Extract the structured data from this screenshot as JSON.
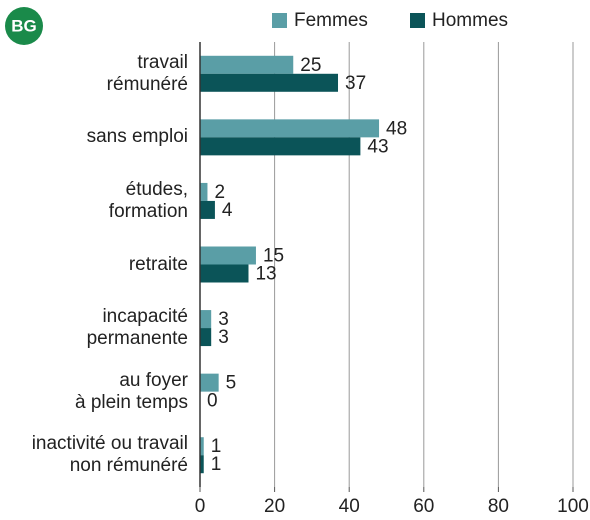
{
  "chart_data": {
    "type": "bar",
    "orientation": "horizontal",
    "badge": "BG",
    "categories": [
      "travail\nrémunéré",
      "sans emploi",
      "études,\nformation",
      "retraite",
      "incapacité\npermanente",
      "au foyer\nà plein temps",
      "inactivité ou travail\nnon rémunéré"
    ],
    "series": [
      {
        "name": "Femmes",
        "color": "#5a9ea6",
        "values": [
          25,
          48,
          2,
          15,
          3,
          5,
          1
        ]
      },
      {
        "name": "Hommes",
        "color": "#0b5458",
        "values": [
          37,
          43,
          4,
          13,
          3,
          0,
          1
        ]
      }
    ],
    "xlim": [
      0,
      100
    ],
    "xticks": [
      0,
      20,
      40,
      60,
      80,
      100
    ],
    "grid": true
  }
}
